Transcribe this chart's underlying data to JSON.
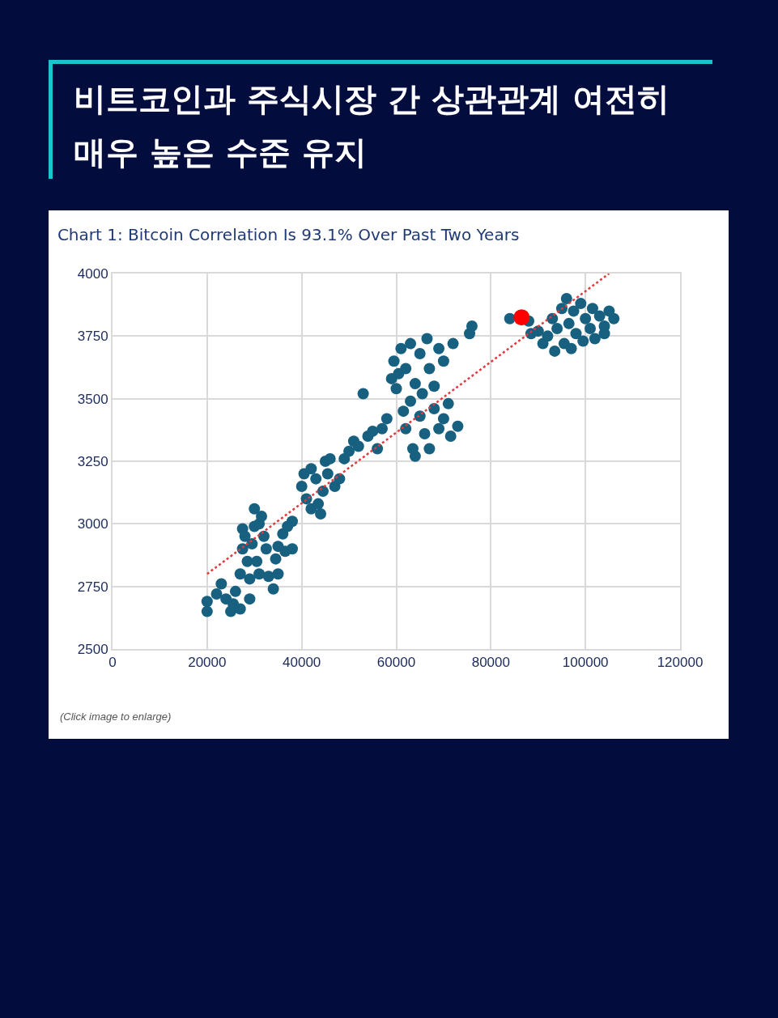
{
  "chart_data": {
    "type": "scatter",
    "title": "비트코인과 주식시장 간 상관관계 여전히 매우 높은 수준 유지",
    "subtitle": "Chart 1: Bitcoin Correlation Is 93.1% Over Past Two Years",
    "annotations": [
      "(Click image to enlarge)"
    ],
    "xlim": [
      0,
      120000
    ],
    "xticks": [
      0,
      20000,
      40000,
      60000,
      80000,
      100000,
      120000
    ],
    "ylim": [
      2500,
      4000
    ],
    "yticks": [
      2500,
      2750,
      3000,
      3250,
      3500,
      3750,
      4000
    ],
    "grid": true,
    "marker": "circle",
    "series": [
      {
        "color": "#17607f",
        "x": [
          20000,
          20000,
          22000,
          23000,
          24000,
          25000,
          25500,
          26000,
          27000,
          27000,
          27500,
          27500,
          28000,
          28500,
          29000,
          29000,
          29500,
          30000,
          30000,
          30500,
          31000,
          31000,
          31500,
          32000,
          32500,
          33000,
          34000,
          34500,
          35000,
          35000,
          36000,
          37000,
          38000,
          38000,
          36500,
          40000,
          40500,
          41000,
          42000,
          42000,
          43000,
          43500,
          44000,
          44500,
          45000,
          45500,
          46000,
          47000,
          48000,
          49000,
          50000,
          51000,
          52000,
          54000,
          55000,
          53000,
          56000,
          57000,
          58000,
          59000,
          59500,
          60000,
          60500,
          61000,
          61500,
          62000,
          62000,
          63000,
          63000,
          63500,
          64000,
          64000,
          65000,
          65000,
          65500,
          66000,
          66500,
          67000,
          67000,
          68000,
          68000,
          69000,
          69000,
          70000,
          70000,
          71000,
          71500,
          72000,
          73000,
          75500,
          76000,
          84000,
          88000,
          88500,
          90000,
          91000,
          92000,
          93000,
          93500,
          94000,
          95000,
          95500,
          96000,
          96500,
          97000,
          97500,
          98000,
          99000,
          99500,
          100000,
          101000,
          101500,
          102000,
          103000,
          104000,
          105000,
          106000,
          104000
        ],
        "values": [
          2650,
          2690,
          2720,
          2760,
          2700,
          2650,
          2680,
          2730,
          2660,
          2800,
          2900,
          2980,
          2950,
          2850,
          2700,
          2780,
          2920,
          2990,
          3060,
          2850,
          2800,
          3000,
          3030,
          2950,
          2900,
          2790,
          2740,
          2860,
          2800,
          2910,
          2960,
          2990,
          3010,
          2900,
          2890,
          3150,
          3200,
          3100,
          3060,
          3220,
          3180,
          3080,
          3040,
          3130,
          3250,
          3200,
          3260,
          3150,
          3180,
          3260,
          3290,
          3330,
          3310,
          3350,
          3370,
          3520,
          3300,
          3380,
          3420,
          3580,
          3650,
          3540,
          3600,
          3700,
          3450,
          3380,
          3620,
          3720,
          3490,
          3300,
          3560,
          3270,
          3680,
          3430,
          3520,
          3360,
          3740,
          3620,
          3300,
          3460,
          3550,
          3700,
          3380,
          3420,
          3650,
          3480,
          3350,
          3720,
          3390,
          3760,
          3790,
          3820,
          3810,
          3760,
          3770,
          3720,
          3750,
          3820,
          3690,
          3780,
          3860,
          3720,
          3900,
          3800,
          3700,
          3850,
          3760,
          3880,
          3730,
          3820,
          3780,
          3860,
          3740,
          3830,
          3790,
          3850,
          3820,
          3760
        ]
      },
      {
        "type": "line",
        "color": "#e0393e",
        "line_style": "dotted",
        "marker": "none",
        "x": [
          20000,
          105000
        ],
        "values": [
          2800,
          4000
        ]
      },
      {
        "color": "#ff0000",
        "x": [
          86500
        ],
        "values": [
          3825
        ]
      }
    ]
  }
}
